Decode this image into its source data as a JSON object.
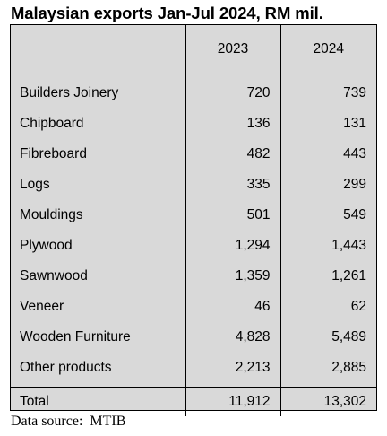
{
  "chart_data": {
    "type": "table",
    "title": "Malaysian exports Jan-Jul 2024, RM mil.",
    "columns": [
      "",
      "2023",
      "2024"
    ],
    "rows": [
      {
        "label": "Builders Joinery",
        "values": [
          "720",
          "739"
        ]
      },
      {
        "label": "Chipboard",
        "values": [
          "136",
          "131"
        ]
      },
      {
        "label": "Fibreboard",
        "values": [
          "482",
          "443"
        ]
      },
      {
        "label": "Logs",
        "values": [
          "335",
          "299"
        ]
      },
      {
        "label": "Mouldings",
        "values": [
          "501",
          "549"
        ]
      },
      {
        "label": "Plywood",
        "values": [
          "1,294",
          "1,443"
        ]
      },
      {
        "label": "Sawnwood",
        "values": [
          "1,359",
          "1,261"
        ]
      },
      {
        "label": "Veneer",
        "values": [
          "46",
          "62"
        ]
      },
      {
        "label": "Wooden Furniture",
        "values": [
          "4,828",
          "5,489"
        ]
      },
      {
        "label": "Other products",
        "values": [
          "2,213",
          "2,885"
        ]
      }
    ],
    "total": {
      "label": "Total",
      "values": [
        "11,912",
        "13,302"
      ]
    },
    "source": "Data source:  MTIB",
    "colors": {
      "table_background": "#d9d9d9",
      "border": "#000000",
      "text": "#000000"
    }
  }
}
